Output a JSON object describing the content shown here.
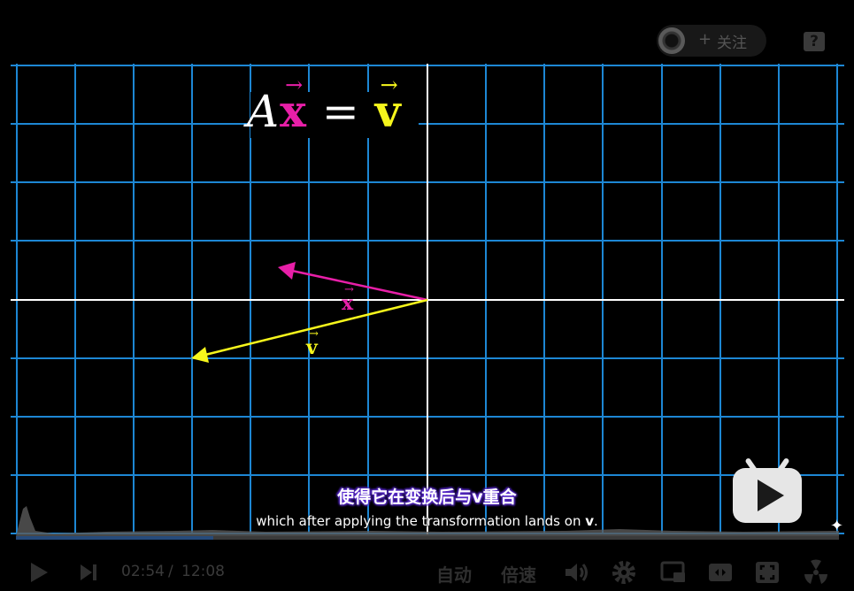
{
  "header": {
    "follow_label": "关注",
    "follow_plus": "+",
    "help_label": "?"
  },
  "video": {
    "equation": {
      "A": "A",
      "x": "x",
      "equals": "=",
      "v": "v",
      "vec_arrow": "→"
    },
    "vector_labels": {
      "x": "x",
      "v": "v"
    },
    "colors": {
      "grid": "#1f8fe0",
      "axes": "#ffffff",
      "vector_x": "#e81fa8",
      "vector_v": "#f6f61c"
    }
  },
  "subtitles": {
    "chinese": "使得它在变换后与v重合",
    "english_prefix": "which after applying the transformation lands on ",
    "english_bold": "v",
    "english_suffix": "."
  },
  "controls": {
    "current_time": "02:54",
    "separator": "/",
    "total_time": "12:08",
    "auto_label": "自动",
    "speed_label": "倍速",
    "progress_fraction": 0.24,
    "icons": [
      "play-icon",
      "next-icon",
      "volume-icon",
      "settings-icon",
      "pip-icon",
      "widescreen-icon",
      "fullscreen-icon",
      "danmaku-icon"
    ]
  }
}
